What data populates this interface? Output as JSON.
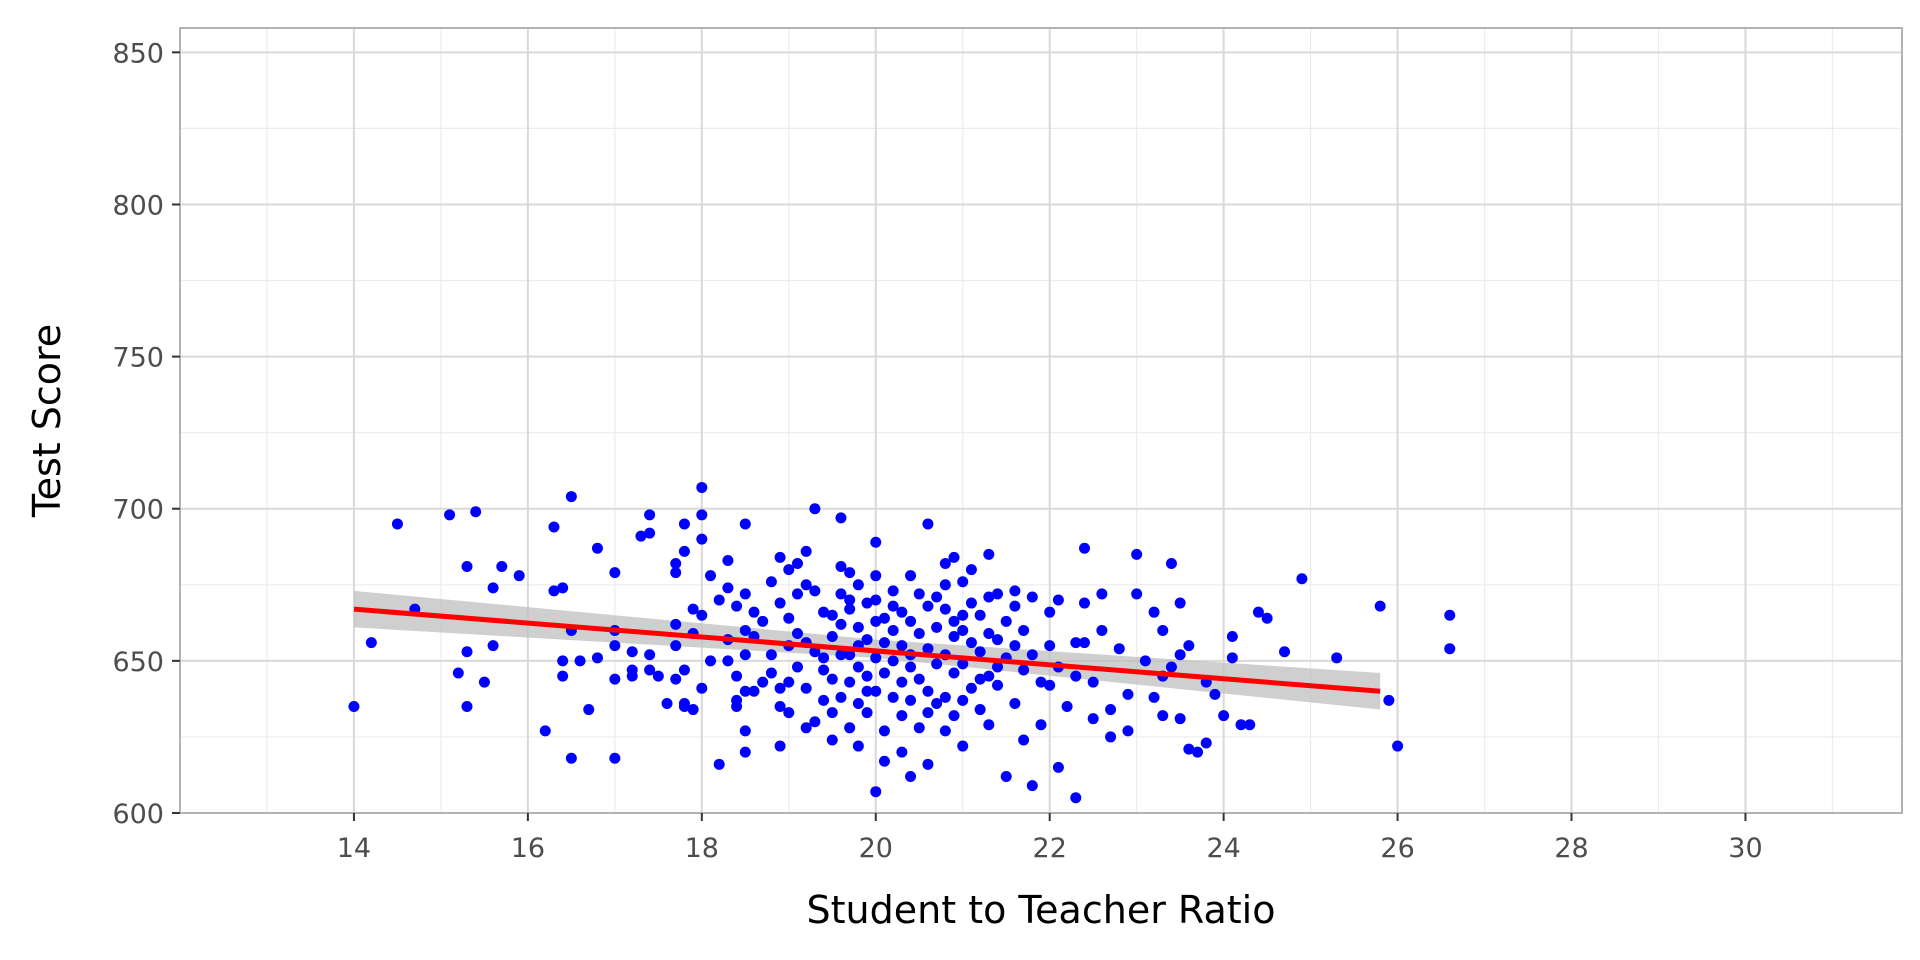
{
  "chart_data": {
    "type": "scatter",
    "xlabel": "Student to Teacher Ratio",
    "ylabel": "Test Score",
    "xlim": [
      12,
      31.8
    ],
    "ylim": [
      600,
      858
    ],
    "x_ticks": [
      14,
      16,
      18,
      20,
      22,
      24,
      26,
      28,
      30
    ],
    "x_tick_labels": [
      "14",
      "16",
      "18",
      "20",
      "22",
      "24",
      "26",
      "28",
      "30"
    ],
    "y_ticks": [
      600,
      650,
      700,
      750,
      800,
      850
    ],
    "y_tick_labels": [
      "600",
      "650",
      "700",
      "750",
      "800",
      "850"
    ],
    "grid": true,
    "colors": {
      "points": "#0000ff",
      "fit_line": "#ff0000",
      "confidence_band": "#bfbfbf",
      "grid_major": "#d9d9d9",
      "grid_minor": "#ececec",
      "panel_border": "#b3b3b3"
    },
    "points": [
      [
        14.0,
        635
      ],
      [
        14.2,
        656
      ],
      [
        14.5,
        695
      ],
      [
        14.7,
        667
      ],
      [
        15.1,
        698
      ],
      [
        15.2,
        646
      ],
      [
        15.3,
        681
      ],
      [
        15.3,
        653
      ],
      [
        15.3,
        635
      ],
      [
        15.4,
        699
      ],
      [
        15.5,
        643
      ],
      [
        15.6,
        655
      ],
      [
        15.6,
        674
      ],
      [
        15.7,
        681
      ],
      [
        15.9,
        678
      ],
      [
        16.2,
        627
      ],
      [
        16.3,
        694
      ],
      [
        16.3,
        673
      ],
      [
        16.4,
        674
      ],
      [
        16.4,
        650
      ],
      [
        16.4,
        645
      ],
      [
        16.5,
        704
      ],
      [
        16.5,
        660
      ],
      [
        16.5,
        618
      ],
      [
        16.6,
        650
      ],
      [
        16.7,
        634
      ],
      [
        16.8,
        651
      ],
      [
        16.8,
        687
      ],
      [
        17.0,
        679
      ],
      [
        17.0,
        660
      ],
      [
        17.0,
        655
      ],
      [
        17.0,
        644
      ],
      [
        17.0,
        618
      ],
      [
        17.2,
        653
      ],
      [
        17.2,
        647
      ],
      [
        17.2,
        645
      ],
      [
        17.3,
        691
      ],
      [
        17.4,
        692
      ],
      [
        17.4,
        698
      ],
      [
        17.4,
        652
      ],
      [
        17.4,
        647
      ],
      [
        17.5,
        645
      ],
      [
        17.6,
        636
      ],
      [
        17.7,
        679
      ],
      [
        17.7,
        682
      ],
      [
        17.7,
        662
      ],
      [
        17.7,
        655
      ],
      [
        17.7,
        644
      ],
      [
        17.8,
        636
      ],
      [
        17.8,
        695
      ],
      [
        17.8,
        686
      ],
      [
        17.8,
        647
      ],
      [
        17.8,
        635
      ],
      [
        17.9,
        667
      ],
      [
        17.9,
        659
      ],
      [
        17.9,
        634
      ],
      [
        18.0,
        707
      ],
      [
        18.0,
        698
      ],
      [
        18.0,
        690
      ],
      [
        18.0,
        665
      ],
      [
        18.0,
        641
      ],
      [
        18.1,
        650
      ],
      [
        18.1,
        678
      ],
      [
        18.2,
        670
      ],
      [
        18.2,
        616
      ],
      [
        18.3,
        683
      ],
      [
        18.3,
        674
      ],
      [
        18.3,
        657
      ],
      [
        18.3,
        650
      ],
      [
        18.4,
        637
      ],
      [
        18.4,
        635
      ],
      [
        18.4,
        668
      ],
      [
        18.4,
        645
      ],
      [
        18.5,
        695
      ],
      [
        18.5,
        672
      ],
      [
        18.5,
        660
      ],
      [
        18.5,
        652
      ],
      [
        18.5,
        640
      ],
      [
        18.5,
        627
      ],
      [
        18.5,
        620
      ],
      [
        18.6,
        666
      ],
      [
        18.6,
        658
      ],
      [
        18.7,
        643
      ],
      [
        18.8,
        676
      ],
      [
        18.8,
        646
      ],
      [
        18.9,
        635
      ],
      [
        18.9,
        684
      ],
      [
        18.9,
        669
      ],
      [
        18.9,
        641
      ],
      [
        18.9,
        622
      ],
      [
        19.0,
        680
      ],
      [
        19.0,
        664
      ],
      [
        19.0,
        655
      ],
      [
        19.0,
        643
      ],
      [
        19.1,
        682
      ],
      [
        19.1,
        672
      ],
      [
        19.1,
        659
      ],
      [
        19.2,
        686
      ],
      [
        19.2,
        675
      ],
      [
        19.2,
        656
      ],
      [
        19.2,
        641
      ],
      [
        19.2,
        628
      ],
      [
        19.3,
        700
      ],
      [
        19.3,
        673
      ],
      [
        19.3,
        653
      ],
      [
        19.3,
        630
      ],
      [
        19.4,
        666
      ],
      [
        19.4,
        647
      ],
      [
        19.4,
        637
      ],
      [
        19.5,
        665
      ],
      [
        19.5,
        658
      ],
      [
        19.5,
        644
      ],
      [
        19.5,
        633
      ],
      [
        19.5,
        624
      ],
      [
        19.6,
        697
      ],
      [
        19.6,
        672
      ],
      [
        19.6,
        662
      ],
      [
        19.6,
        652
      ],
      [
        19.6,
        638
      ],
      [
        19.7,
        679
      ],
      [
        19.7,
        667
      ],
      [
        19.7,
        652
      ],
      [
        19.7,
        643
      ],
      [
        19.7,
        628
      ],
      [
        19.8,
        675
      ],
      [
        19.8,
        661
      ],
      [
        19.8,
        648
      ],
      [
        19.8,
        636
      ],
      [
        19.8,
        622
      ],
      [
        19.9,
        669
      ],
      [
        19.9,
        657
      ],
      [
        19.9,
        645
      ],
      [
        19.9,
        633
      ],
      [
        20.0,
        689
      ],
      [
        20.0,
        678
      ],
      [
        20.0,
        670
      ],
      [
        20.0,
        651
      ],
      [
        20.0,
        640
      ],
      [
        20.0,
        607
      ],
      [
        20.1,
        664
      ],
      [
        20.1,
        656
      ],
      [
        20.1,
        646
      ],
      [
        20.1,
        627
      ],
      [
        20.1,
        617
      ],
      [
        20.2,
        668
      ],
      [
        20.2,
        660
      ],
      [
        20.2,
        650
      ],
      [
        20.2,
        638
      ],
      [
        20.3,
        666
      ],
      [
        20.3,
        655
      ],
      [
        20.3,
        643
      ],
      [
        20.3,
        632
      ],
      [
        20.3,
        620
      ],
      [
        20.4,
        678
      ],
      [
        20.4,
        663
      ],
      [
        20.4,
        648
      ],
      [
        20.4,
        637
      ],
      [
        20.4,
        612
      ],
      [
        20.5,
        672
      ],
      [
        20.5,
        659
      ],
      [
        20.5,
        644
      ],
      [
        20.5,
        628
      ],
      [
        20.6,
        695
      ],
      [
        20.6,
        668
      ],
      [
        20.6,
        654
      ],
      [
        20.6,
        640
      ],
      [
        20.6,
        616
      ],
      [
        20.7,
        671
      ],
      [
        20.7,
        661
      ],
      [
        20.7,
        649
      ],
      [
        20.7,
        636
      ],
      [
        20.8,
        682
      ],
      [
        20.8,
        667
      ],
      [
        20.8,
        652
      ],
      [
        20.8,
        638
      ],
      [
        20.8,
        627
      ],
      [
        20.9,
        684
      ],
      [
        20.9,
        663
      ],
      [
        20.9,
        646
      ],
      [
        20.9,
        632
      ],
      [
        21.0,
        676
      ],
      [
        21.0,
        660
      ],
      [
        21.0,
        649
      ],
      [
        21.0,
        637
      ],
      [
        21.0,
        622
      ],
      [
        21.1,
        680
      ],
      [
        21.1,
        669
      ],
      [
        21.1,
        656
      ],
      [
        21.1,
        641
      ],
      [
        21.2,
        665
      ],
      [
        21.2,
        653
      ],
      [
        21.2,
        634
      ],
      [
        21.3,
        685
      ],
      [
        21.3,
        671
      ],
      [
        21.3,
        659
      ],
      [
        21.3,
        645
      ],
      [
        21.3,
        629
      ],
      [
        21.4,
        672
      ],
      [
        21.4,
        657
      ],
      [
        21.4,
        642
      ],
      [
        21.5,
        663
      ],
      [
        21.5,
        612
      ],
      [
        21.5,
        651
      ],
      [
        21.6,
        668
      ],
      [
        21.6,
        655
      ],
      [
        21.6,
        636
      ],
      [
        21.7,
        660
      ],
      [
        21.7,
        647
      ],
      [
        21.7,
        624
      ],
      [
        21.8,
        609
      ],
      [
        21.8,
        671
      ],
      [
        21.8,
        652
      ],
      [
        21.9,
        643
      ],
      [
        21.9,
        629
      ],
      [
        22.0,
        666
      ],
      [
        22.0,
        655
      ],
      [
        22.0,
        642
      ],
      [
        22.1,
        615
      ],
      [
        22.1,
        670
      ],
      [
        22.1,
        648
      ],
      [
        22.2,
        635
      ],
      [
        22.3,
        656
      ],
      [
        22.3,
        645
      ],
      [
        22.3,
        605
      ],
      [
        22.4,
        687
      ],
      [
        22.4,
        669
      ],
      [
        22.4,
        656
      ],
      [
        22.5,
        643
      ],
      [
        22.5,
        631
      ],
      [
        22.6,
        672
      ],
      [
        22.6,
        660
      ],
      [
        22.7,
        634
      ],
      [
        22.7,
        625
      ],
      [
        22.8,
        654
      ],
      [
        22.9,
        639
      ],
      [
        22.9,
        627
      ],
      [
        23.0,
        685
      ],
      [
        23.0,
        672
      ],
      [
        23.1,
        650
      ],
      [
        23.2,
        638
      ],
      [
        23.2,
        666
      ],
      [
        23.3,
        660
      ],
      [
        23.3,
        645
      ],
      [
        23.3,
        632
      ],
      [
        23.4,
        682
      ],
      [
        23.4,
        648
      ],
      [
        23.5,
        669
      ],
      [
        23.5,
        652
      ],
      [
        23.5,
        631
      ],
      [
        23.6,
        621
      ],
      [
        23.6,
        655
      ],
      [
        23.7,
        620
      ],
      [
        23.8,
        643
      ],
      [
        23.8,
        623
      ],
      [
        23.9,
        639
      ],
      [
        24.0,
        632
      ],
      [
        24.1,
        658
      ],
      [
        24.1,
        651
      ],
      [
        24.2,
        629
      ],
      [
        24.3,
        629
      ],
      [
        24.4,
        666
      ],
      [
        24.5,
        664
      ],
      [
        24.7,
        653
      ],
      [
        24.9,
        677
      ],
      [
        25.3,
        651
      ],
      [
        25.8,
        668
      ],
      [
        25.9,
        637
      ],
      [
        26.0,
        622
      ],
      [
        26.6,
        665
      ],
      [
        26.6,
        654
      ],
      [
        18.7,
        663
      ],
      [
        19.1,
        648
      ],
      [
        19.4,
        651
      ],
      [
        19.7,
        670
      ],
      [
        20.2,
        673
      ],
      [
        20.6,
        633
      ],
      [
        21.0,
        665
      ],
      [
        21.4,
        648
      ],
      [
        19.8,
        655
      ],
      [
        20.4,
        652
      ],
      [
        18.8,
        652
      ],
      [
        19.6,
        681
      ],
      [
        20.8,
        675
      ],
      [
        21.2,
        644
      ],
      [
        19.0,
        633
      ],
      [
        20.0,
        663
      ],
      [
        20.9,
        658
      ],
      [
        21.6,
        673
      ],
      [
        18.6,
        640
      ],
      [
        19.9,
        640
      ]
    ],
    "fit_line": {
      "x": [
        14.0,
        25.8
      ],
      "y": [
        667,
        640
      ]
    },
    "confidence_band": {
      "x": [
        14.0,
        20.0,
        25.8
      ],
      "lower": [
        661,
        651,
        634
      ],
      "upper": [
        673,
        657,
        646
      ]
    }
  }
}
